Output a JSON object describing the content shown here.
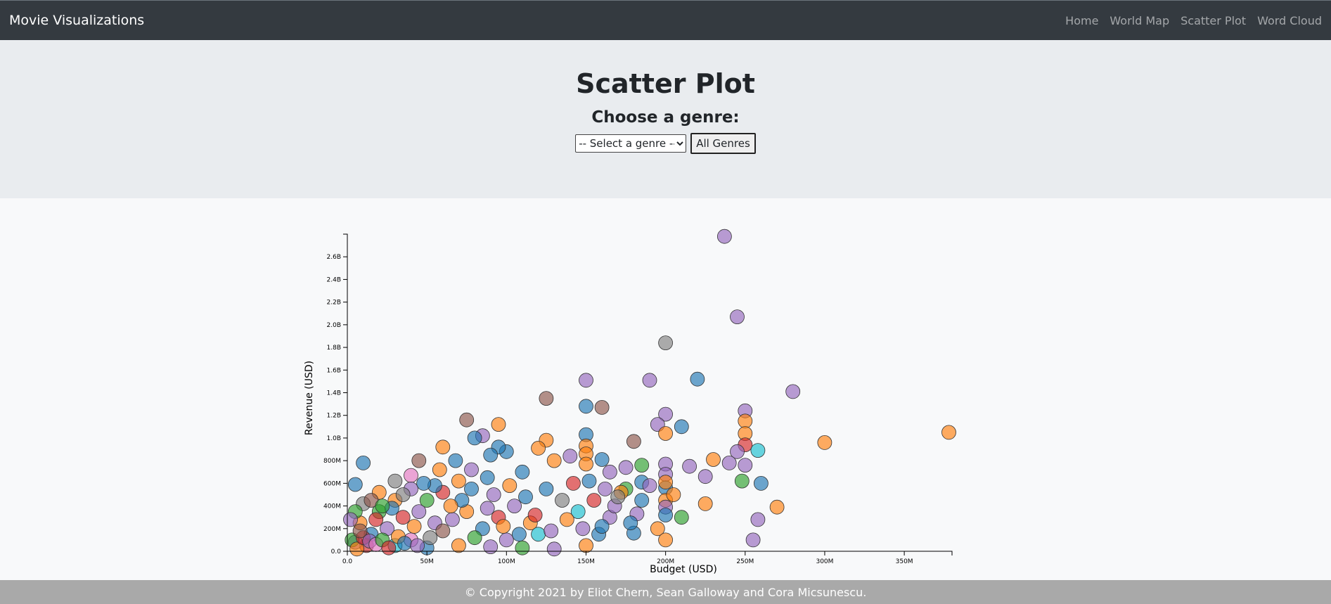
{
  "navbar": {
    "brand": "Movie Visualizations",
    "links": [
      "Home",
      "World Map",
      "Scatter Plot",
      "Word Cloud"
    ]
  },
  "header": {
    "title": "Scatter Plot",
    "subtitle": "Choose a genre:",
    "select_value": "-- Select a genre --",
    "all_button": "All Genres"
  },
  "chart_data": {
    "type": "scatter",
    "xlabel": "Budget (USD)",
    "ylabel": "Revenue (USD)",
    "xlim": [
      0,
      380
    ],
    "ylim": [
      0,
      2.8
    ],
    "x_ticks": [
      "0.0",
      "50M",
      "100M",
      "150M",
      "200M",
      "250M",
      "300M",
      "350M"
    ],
    "y_ticks": [
      "0.0",
      "200M",
      "400M",
      "600M",
      "800M",
      "1.0B",
      "1.2B",
      "1.4B",
      "1.6B",
      "1.8B",
      "2.0B",
      "2.2B",
      "2.4B",
      "2.6B"
    ],
    "x_units": "millions USD",
    "y_units": "billions USD",
    "grid": false,
    "palette": [
      "#ff7f0e",
      "#9467bd",
      "#1f77b4",
      "#2ca02c",
      "#d62728",
      "#8c564b",
      "#7f7f7f",
      "#e377c2",
      "#17becf",
      "#bcbd22"
    ],
    "points": [
      [
        237,
        2.78,
        1
      ],
      [
        245,
        2.07,
        1
      ],
      [
        200,
        1.84,
        6
      ],
      [
        220,
        1.52,
        2
      ],
      [
        190,
        1.51,
        1
      ],
      [
        150,
        1.51,
        1
      ],
      [
        280,
        1.41,
        1
      ],
      [
        125,
        1.35,
        5
      ],
      [
        150,
        1.28,
        2
      ],
      [
        160,
        1.27,
        5
      ],
      [
        250,
        1.24,
        1
      ],
      [
        250,
        1.15,
        0
      ],
      [
        378,
        1.05,
        0
      ],
      [
        300,
        0.96,
        0
      ],
      [
        200,
        1.21,
        1
      ],
      [
        195,
        1.12,
        1
      ],
      [
        210,
        1.1,
        2
      ],
      [
        200,
        1.04,
        0
      ],
      [
        250,
        1.04,
        0
      ],
      [
        250,
        0.94,
        4
      ],
      [
        258,
        0.89,
        8
      ],
      [
        245,
        0.88,
        1
      ],
      [
        250,
        0.76,
        1
      ],
      [
        230,
        0.81,
        0
      ],
      [
        225,
        0.66,
        1
      ],
      [
        260,
        0.6,
        2
      ],
      [
        258,
        0.28,
        1
      ],
      [
        255,
        0.1,
        1
      ],
      [
        270,
        0.39,
        0
      ],
      [
        225,
        0.42,
        0
      ],
      [
        210,
        0.3,
        3
      ],
      [
        215,
        0.75,
        1
      ],
      [
        200,
        0.77,
        1
      ],
      [
        200,
        0.68,
        1
      ],
      [
        200,
        0.56,
        2
      ],
      [
        200,
        0.45,
        0
      ],
      [
        200,
        0.39,
        1
      ],
      [
        200,
        0.32,
        2
      ],
      [
        195,
        0.2,
        0
      ],
      [
        200,
        0.1,
        0
      ],
      [
        150,
        1.03,
        2
      ],
      [
        150,
        0.93,
        0
      ],
      [
        150,
        0.86,
        0
      ],
      [
        160,
        0.81,
        2
      ],
      [
        150,
        0.77,
        0
      ],
      [
        125,
        0.98,
        0
      ],
      [
        120,
        0.91,
        0
      ],
      [
        100,
        0.88,
        2
      ],
      [
        95,
        1.12,
        0
      ],
      [
        85,
        1.02,
        1
      ],
      [
        80,
        1.0,
        2
      ],
      [
        75,
        1.16,
        5
      ],
      [
        60,
        0.92,
        0
      ],
      [
        45,
        0.8,
        5
      ],
      [
        10,
        0.78,
        2
      ],
      [
        5,
        0.59,
        2
      ],
      [
        40,
        0.67,
        7
      ],
      [
        30,
        0.62,
        6
      ],
      [
        95,
        0.92,
        2
      ],
      [
        180,
        0.97,
        5
      ],
      [
        185,
        0.76,
        3
      ],
      [
        175,
        0.74,
        1
      ],
      [
        165,
        0.7,
        1
      ],
      [
        140,
        0.84,
        1
      ],
      [
        130,
        0.8,
        0
      ],
      [
        110,
        0.7,
        2
      ],
      [
        90,
        0.85,
        2
      ],
      [
        70,
        0.62,
        0
      ],
      [
        60,
        0.52,
        4
      ],
      [
        50,
        0.45,
        3
      ],
      [
        40,
        0.55,
        1
      ],
      [
        30,
        0.45,
        0
      ],
      [
        20,
        0.52,
        0
      ],
      [
        10,
        0.42,
        6
      ],
      [
        20,
        0.35,
        3
      ],
      [
        35,
        0.3,
        4
      ],
      [
        55,
        0.25,
        1
      ],
      [
        75,
        0.35,
        0
      ],
      [
        85,
        0.2,
        2
      ],
      [
        95,
        0.3,
        4
      ],
      [
        105,
        0.4,
        1
      ],
      [
        115,
        0.25,
        0
      ],
      [
        125,
        0.55,
        2
      ],
      [
        135,
        0.45,
        6
      ],
      [
        145,
        0.35,
        8
      ],
      [
        155,
        0.45,
        4
      ],
      [
        165,
        0.3,
        1
      ],
      [
        175,
        0.55,
        3
      ],
      [
        185,
        0.45,
        2
      ],
      [
        180,
        0.16,
        2
      ],
      [
        120,
        0.15,
        8
      ],
      [
        100,
        0.1,
        1
      ],
      [
        80,
        0.12,
        3
      ],
      [
        60,
        0.18,
        5
      ],
      [
        40,
        0.1,
        7
      ],
      [
        25,
        0.2,
        1
      ],
      [
        15,
        0.15,
        2
      ],
      [
        8,
        0.25,
        0
      ],
      [
        5,
        0.35,
        3
      ],
      [
        12,
        0.05,
        4
      ],
      [
        30,
        0.05,
        8
      ],
      [
        50,
        0.03,
        2
      ],
      [
        70,
        0.05,
        0
      ],
      [
        90,
        0.04,
        1
      ],
      [
        110,
        0.03,
        3
      ],
      [
        130,
        0.02,
        1
      ],
      [
        150,
        0.05,
        0
      ],
      [
        5,
        0.08,
        1
      ],
      [
        18,
        0.28,
        4
      ],
      [
        28,
        0.38,
        2
      ],
      [
        42,
        0.22,
        0
      ],
      [
        52,
        0.12,
        6
      ],
      [
        66,
        0.28,
        1
      ],
      [
        72,
        0.45,
        2
      ],
      [
        88,
        0.38,
        1
      ],
      [
        98,
        0.22,
        0
      ],
      [
        108,
        0.15,
        2
      ],
      [
        118,
        0.32,
        4
      ],
      [
        128,
        0.18,
        1
      ],
      [
        138,
        0.28,
        0
      ],
      [
        148,
        0.2,
        1
      ],
      [
        158,
        0.15,
        2
      ],
      [
        168,
        0.4,
        1
      ],
      [
        15,
        0.45,
        5
      ],
      [
        22,
        0.4,
        3
      ],
      [
        35,
        0.5,
        6
      ],
      [
        45,
        0.35,
        1
      ],
      [
        55,
        0.58,
        2
      ],
      [
        65,
        0.4,
        0
      ],
      [
        78,
        0.55,
        2
      ],
      [
        92,
        0.5,
        1
      ],
      [
        102,
        0.58,
        0
      ],
      [
        112,
        0.48,
        2
      ],
      [
        142,
        0.6,
        4
      ],
      [
        152,
        0.62,
        2
      ],
      [
        162,
        0.55,
        1
      ],
      [
        172,
        0.52,
        0
      ],
      [
        182,
        0.33,
        1
      ],
      [
        178,
        0.25,
        2
      ],
      [
        48,
        0.6,
        2
      ],
      [
        58,
        0.72,
        0
      ],
      [
        68,
        0.8,
        2
      ],
      [
        78,
        0.72,
        1
      ],
      [
        88,
        0.65,
        2
      ],
      [
        3,
        0.1,
        3
      ],
      [
        6,
        0.02,
        0
      ],
      [
        10,
        0.12,
        4
      ],
      [
        14,
        0.09,
        1
      ],
      [
        18,
        0.06,
        7
      ],
      [
        22,
        0.1,
        3
      ],
      [
        26,
        0.03,
        4
      ],
      [
        32,
        0.13,
        0
      ],
      [
        36,
        0.07,
        2
      ],
      [
        44,
        0.05,
        1
      ],
      [
        8,
        0.18,
        5
      ],
      [
        2,
        0.28,
        1
      ],
      [
        240,
        0.78,
        1
      ],
      [
        248,
        0.62,
        3
      ],
      [
        185,
        0.61,
        2
      ],
      [
        200,
        0.61,
        0
      ],
      [
        170,
        0.48,
        6
      ],
      [
        190,
        0.58,
        1
      ],
      [
        205,
        0.5,
        0
      ],
      [
        160,
        0.22,
        2
      ]
    ]
  }
}
